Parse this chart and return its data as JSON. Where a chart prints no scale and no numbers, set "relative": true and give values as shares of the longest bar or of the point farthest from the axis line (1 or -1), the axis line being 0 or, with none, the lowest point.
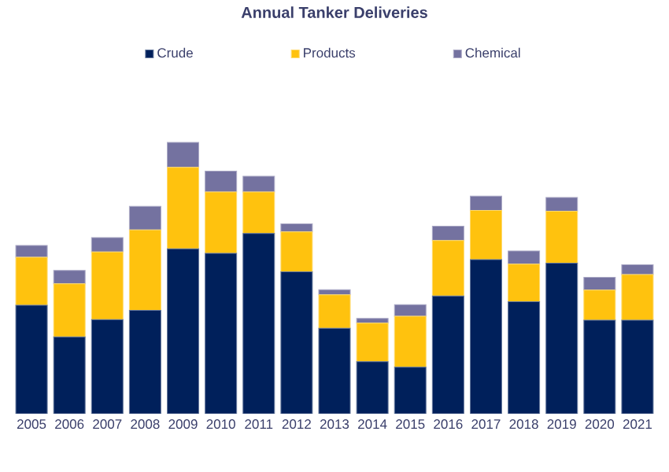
{
  "chart_data": {
    "type": "bar",
    "title": "Annual Tanker Deliveries",
    "stacked": true,
    "relative": true,
    "legend": "top",
    "categories": [
      "2005",
      "2006",
      "2007",
      "2008",
      "2009",
      "2010",
      "2011",
      "2012",
      "2013",
      "2014",
      "2015",
      "2016",
      "2017",
      "2018",
      "2019",
      "2020",
      "2021"
    ],
    "series": [
      {
        "name": "Crude",
        "color": "#00205b",
        "values": [
          0.4,
          0.283,
          0.347,
          0.381,
          0.608,
          0.591,
          0.664,
          0.523,
          0.315,
          0.192,
          0.172,
          0.434,
          0.568,
          0.413,
          0.555,
          0.345,
          0.345
        ]
      },
      {
        "name": "Products",
        "color": "#ffc20e",
        "values": [
          0.177,
          0.196,
          0.249,
          0.296,
          0.3,
          0.226,
          0.153,
          0.147,
          0.123,
          0.142,
          0.187,
          0.204,
          0.181,
          0.138,
          0.191,
          0.111,
          0.168
        ]
      },
      {
        "name": "Chemical",
        "color": "#7472a0",
        "values": [
          0.043,
          0.049,
          0.053,
          0.087,
          0.092,
          0.077,
          0.058,
          0.03,
          0.019,
          0.017,
          0.043,
          0.053,
          0.053,
          0.049,
          0.051,
          0.047,
          0.036
        ]
      }
    ]
  }
}
